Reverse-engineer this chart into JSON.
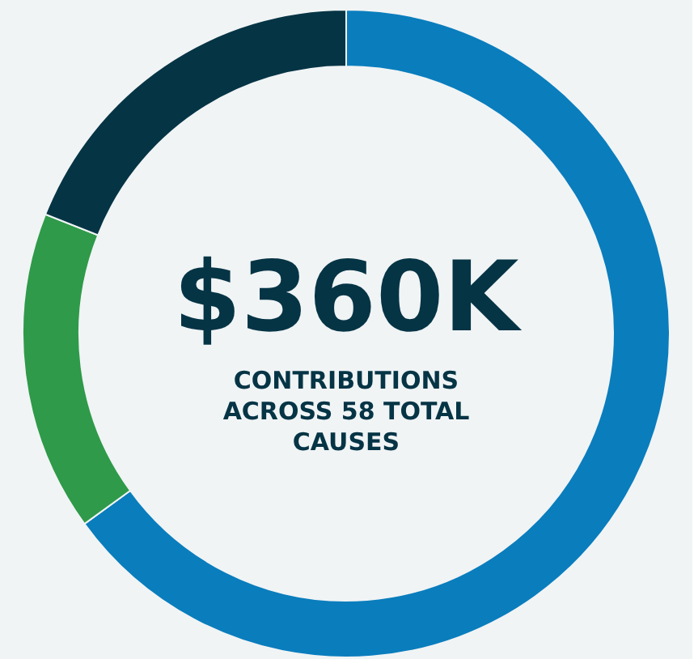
{
  "chart_data": {
    "type": "donut",
    "categories": [
      null,
      null,
      null
    ],
    "values": [
      65,
      16,
      19
    ],
    "colors": [
      "#0a7dbd",
      "#2f9a49",
      "#053445"
    ],
    "annotations": [
      "$360K",
      "CONTRIBUTIONS ACROSS 58 TOTAL CAUSES"
    ]
  }
}
